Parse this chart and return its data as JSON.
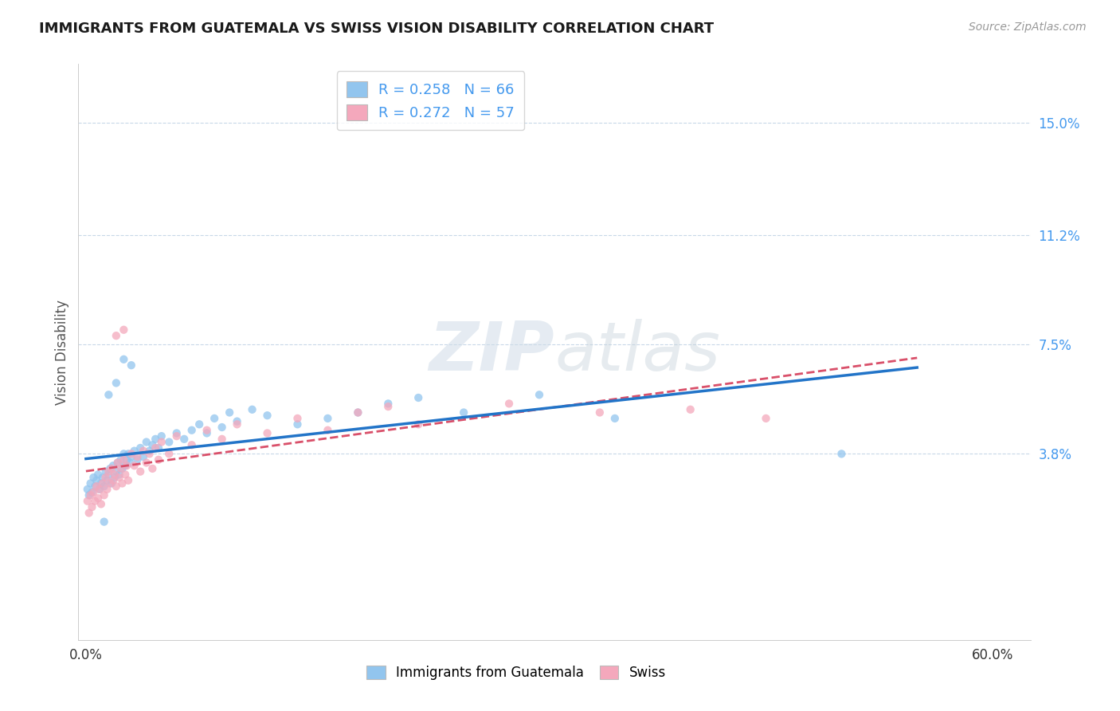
{
  "title": "IMMIGRANTS FROM GUATEMALA VS SWISS VISION DISABILITY CORRELATION CHART",
  "source": "Source: ZipAtlas.com",
  "ylabel": "Vision Disability",
  "r_blue": 0.258,
  "n_blue": 66,
  "r_pink": 0.272,
  "n_pink": 57,
  "xlim": [
    0.0,
    0.6
  ],
  "ylim": [
    -0.02,
    0.165
  ],
  "yticks": [
    0.038,
    0.075,
    0.112,
    0.15
  ],
  "ytick_labels": [
    "3.8%",
    "7.5%",
    "11.2%",
    "15.0%"
  ],
  "xticks": [
    0.0,
    0.6
  ],
  "xtick_labels": [
    "0.0%",
    "60.0%"
  ],
  "blue_color": "#92C5EE",
  "pink_color": "#F4A8BC",
  "trend_blue_color": "#2274C8",
  "trend_pink_color": "#D9506A",
  "axis_label_color": "#4499EE",
  "title_fontsize": 13,
  "blue_scatter": [
    [
      0.001,
      0.026
    ],
    [
      0.002,
      0.024
    ],
    [
      0.003,
      0.028
    ],
    [
      0.004,
      0.025
    ],
    [
      0.005,
      0.03
    ],
    [
      0.006,
      0.027
    ],
    [
      0.007,
      0.029
    ],
    [
      0.008,
      0.031
    ],
    [
      0.009,
      0.026
    ],
    [
      0.01,
      0.028
    ],
    [
      0.011,
      0.03
    ],
    [
      0.012,
      0.027
    ],
    [
      0.013,
      0.032
    ],
    [
      0.014,
      0.029
    ],
    [
      0.015,
      0.031
    ],
    [
      0.016,
      0.033
    ],
    [
      0.017,
      0.028
    ],
    [
      0.018,
      0.034
    ],
    [
      0.019,
      0.03
    ],
    [
      0.02,
      0.032
    ],
    [
      0.021,
      0.035
    ],
    [
      0.022,
      0.031
    ],
    [
      0.023,
      0.036
    ],
    [
      0.024,
      0.033
    ],
    [
      0.025,
      0.038
    ],
    [
      0.026,
      0.034
    ],
    [
      0.027,
      0.036
    ],
    [
      0.028,
      0.038
    ],
    [
      0.029,
      0.035
    ],
    [
      0.03,
      0.037
    ],
    [
      0.032,
      0.039
    ],
    [
      0.034,
      0.036
    ],
    [
      0.036,
      0.04
    ],
    [
      0.038,
      0.037
    ],
    [
      0.04,
      0.042
    ],
    [
      0.042,
      0.039
    ],
    [
      0.044,
      0.041
    ],
    [
      0.046,
      0.043
    ],
    [
      0.048,
      0.04
    ],
    [
      0.05,
      0.044
    ],
    [
      0.055,
      0.042
    ],
    [
      0.06,
      0.045
    ],
    [
      0.065,
      0.043
    ],
    [
      0.07,
      0.046
    ],
    [
      0.075,
      0.048
    ],
    [
      0.08,
      0.045
    ],
    [
      0.085,
      0.05
    ],
    [
      0.09,
      0.047
    ],
    [
      0.095,
      0.052
    ],
    [
      0.1,
      0.049
    ],
    [
      0.11,
      0.053
    ],
    [
      0.12,
      0.051
    ],
    [
      0.14,
      0.048
    ],
    [
      0.16,
      0.05
    ],
    [
      0.18,
      0.052
    ],
    [
      0.2,
      0.055
    ],
    [
      0.22,
      0.057
    ],
    [
      0.25,
      0.052
    ],
    [
      0.3,
      0.058
    ],
    [
      0.35,
      0.05
    ],
    [
      0.015,
      0.058
    ],
    [
      0.02,
      0.062
    ],
    [
      0.025,
      0.07
    ],
    [
      0.03,
      0.068
    ],
    [
      0.5,
      0.038
    ],
    [
      0.012,
      0.015
    ]
  ],
  "pink_scatter": [
    [
      0.001,
      0.022
    ],
    [
      0.002,
      0.018
    ],
    [
      0.003,
      0.024
    ],
    [
      0.004,
      0.02
    ],
    [
      0.005,
      0.025
    ],
    [
      0.006,
      0.022
    ],
    [
      0.007,
      0.027
    ],
    [
      0.008,
      0.023
    ],
    [
      0.009,
      0.026
    ],
    [
      0.01,
      0.021
    ],
    [
      0.011,
      0.028
    ],
    [
      0.012,
      0.024
    ],
    [
      0.013,
      0.03
    ],
    [
      0.014,
      0.026
    ],
    [
      0.015,
      0.032
    ],
    [
      0.016,
      0.028
    ],
    [
      0.017,
      0.033
    ],
    [
      0.018,
      0.029
    ],
    [
      0.019,
      0.031
    ],
    [
      0.02,
      0.027
    ],
    [
      0.021,
      0.035
    ],
    [
      0.022,
      0.03
    ],
    [
      0.023,
      0.033
    ],
    [
      0.024,
      0.028
    ],
    [
      0.025,
      0.036
    ],
    [
      0.026,
      0.031
    ],
    [
      0.027,
      0.034
    ],
    [
      0.028,
      0.029
    ],
    [
      0.03,
      0.038
    ],
    [
      0.032,
      0.034
    ],
    [
      0.034,
      0.037
    ],
    [
      0.036,
      0.032
    ],
    [
      0.038,
      0.039
    ],
    [
      0.04,
      0.035
    ],
    [
      0.042,
      0.038
    ],
    [
      0.044,
      0.033
    ],
    [
      0.046,
      0.04
    ],
    [
      0.048,
      0.036
    ],
    [
      0.05,
      0.042
    ],
    [
      0.055,
      0.038
    ],
    [
      0.06,
      0.044
    ],
    [
      0.07,
      0.041
    ],
    [
      0.08,
      0.046
    ],
    [
      0.09,
      0.043
    ],
    [
      0.1,
      0.048
    ],
    [
      0.12,
      0.045
    ],
    [
      0.14,
      0.05
    ],
    [
      0.16,
      0.046
    ],
    [
      0.18,
      0.052
    ],
    [
      0.2,
      0.054
    ],
    [
      0.22,
      0.048
    ],
    [
      0.28,
      0.055
    ],
    [
      0.34,
      0.052
    ],
    [
      0.4,
      0.053
    ],
    [
      0.45,
      0.05
    ],
    [
      0.02,
      0.078
    ],
    [
      0.025,
      0.08
    ]
  ]
}
